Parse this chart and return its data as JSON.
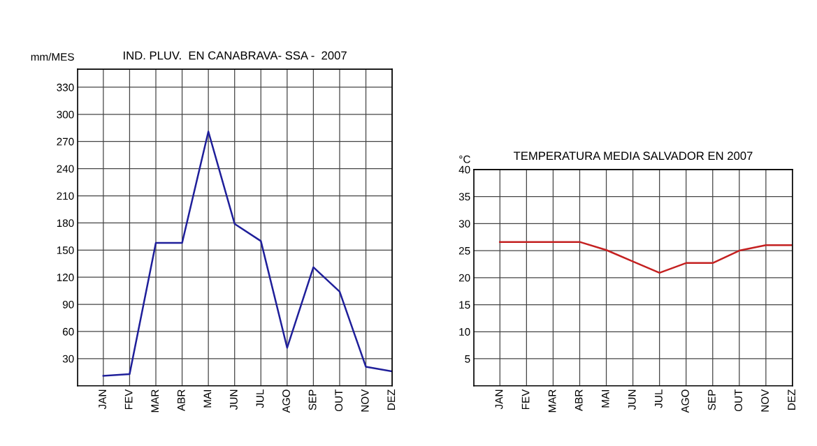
{
  "chart_data": [
    {
      "type": "line",
      "title": "IND. PLUV.  EN CANABRAVA- SSA -  2007",
      "ylabel": "mm/MES",
      "categories": [
        "JAN",
        "FEV",
        "MAR",
        "ABR",
        "MAI",
        "JUN",
        "JUL",
        "AGO",
        "SEP",
        "OUT",
        "NOV",
        "DEZ"
      ],
      "series": [
        {
          "color": "#1f1f9a",
          "values": [
            11,
            13,
            158,
            158,
            281,
            179,
            160,
            42,
            131,
            104,
            21,
            16
          ]
        }
      ],
      "ylim": [
        0,
        350
      ],
      "yticks": [
        30,
        60,
        90,
        120,
        150,
        180,
        210,
        240,
        270,
        300,
        330
      ],
      "grid": true,
      "marker": "none",
      "line_style": "solid"
    },
    {
      "type": "line",
      "title": "TEMPERATURA MEDIA SALVADOR EN 2007",
      "ylabel": "°C",
      "categories": [
        "JAN",
        "FEV",
        "MAR",
        "ABR",
        "MAI",
        "JUN",
        "JUL",
        "AGO",
        "SEP",
        "OUT",
        "NOV",
        "DEZ"
      ],
      "series": [
        {
          "color": "#c42020",
          "values": [
            26.6,
            26.6,
            26.6,
            26.6,
            25.1,
            23.0,
            20.9,
            22.7,
            22.7,
            25.0,
            26.0,
            26.0
          ]
        }
      ],
      "ylim": [
        0,
        40
      ],
      "yticks": [
        5,
        10,
        15,
        20,
        25,
        30,
        35,
        40
      ],
      "grid": true,
      "marker": "none",
      "line_style": "solid"
    }
  ]
}
